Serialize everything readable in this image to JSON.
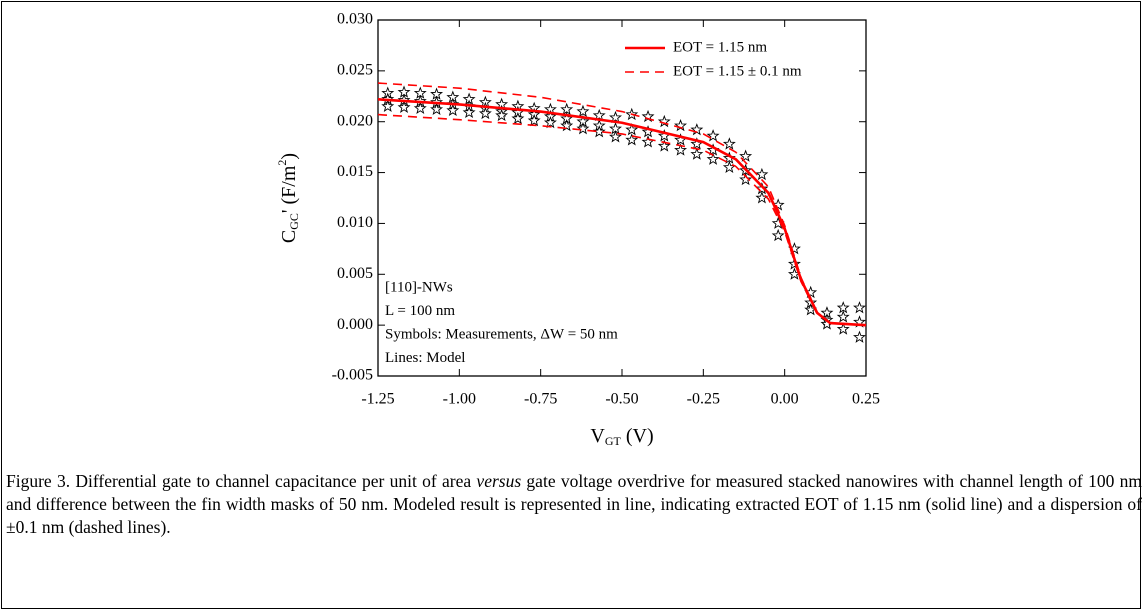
{
  "chart_data": {
    "type": "line",
    "x_label": {
      "main": "V",
      "sub": "GT",
      "rest": " (V)"
    },
    "y_label": {
      "main": "C",
      "sub": "GC",
      "rest": "' (F/m",
      "sup": "2",
      "end": ")"
    },
    "xlim": [
      -1.25,
      0.25
    ],
    "xticks": [
      -1.25,
      {
        "value": -1.0,
        "label": "-1.00"
      },
      -0.75,
      {
        "value": -0.5,
        "label": "-0.50"
      },
      -0.25,
      {
        "value": 0,
        "label": "0.00"
      },
      0.25
    ],
    "ylim": [
      -0.005,
      0.03
    ],
    "yticks": [
      {
        "value": -0.005,
        "label": "-0.005"
      },
      {
        "value": 0,
        "label": "0.000"
      },
      {
        "value": 0.005,
        "label": "0.005"
      },
      {
        "value": 0.01,
        "label": "0.010"
      },
      {
        "value": 0.015,
        "label": "0.015"
      },
      {
        "value": 0.02,
        "label": "0.020"
      },
      {
        "value": 0.025,
        "label": "0.025"
      },
      {
        "value": 0.03,
        "label": "0.030"
      }
    ],
    "x": [
      -1.25,
      -1.0,
      -0.75,
      -0.5,
      -0.25,
      -0.15,
      -0.05,
      0,
      0.05,
      0.1,
      0.14,
      0.25
    ],
    "series": [
      {
        "name": "EOT = 1.15 nm",
        "color": "#ff0000",
        "dashed": false,
        "values": [
          0.0222,
          0.0217,
          0.021,
          0.0199,
          0.018,
          0.0163,
          0.013,
          0.0095,
          0.0045,
          0.0012,
          0.0002,
          0
        ]
      },
      {
        "name": "EOT = 1.15 ± 0.1 nm",
        "color": "#ff0000",
        "dashed": true,
        "values": [
          0.0238,
          0.0233,
          0.0224,
          0.021,
          0.0188,
          0.017,
          0.0136,
          0.0098,
          0.0047,
          0.0012,
          0.0002,
          0
        ]
      },
      {
        "color": "#ff0000",
        "dashed": true,
        "values": [
          0.0207,
          0.0202,
          0.0196,
          0.0188,
          0.0172,
          0.0156,
          0.0124,
          0.0092,
          0.0043,
          0.0011,
          0.0002,
          0
        ]
      }
    ],
    "legend": "upper right",
    "measurements": {
      "marker": "star",
      "x": [
        -1.22,
        -1.17,
        -1.12,
        -1.07,
        -1.02,
        -0.97,
        -0.92,
        -0.87,
        -0.82,
        -0.77,
        -0.72,
        -0.67,
        -0.62,
        -0.57,
        -0.52,
        -0.47,
        -0.42,
        -0.37,
        -0.32,
        -0.27,
        -0.22,
        -0.17,
        -0.12,
        -0.07,
        -0.02,
        0.03,
        0.08,
        0.13,
        0.18,
        0.23
      ],
      "values": [
        [
          0.0228,
          0.0222,
          0.0215
        ],
        [
          0.0229,
          0.0221,
          0.0214
        ],
        [
          0.0228,
          0.022,
          0.0213
        ],
        [
          0.0227,
          0.0219,
          0.0212
        ],
        [
          0.0224,
          0.0217,
          0.0211
        ],
        [
          0.0222,
          0.0215,
          0.0209
        ],
        [
          0.0219,
          0.0213,
          0.0208
        ],
        [
          0.0217,
          0.021,
          0.0206
        ],
        [
          0.0215,
          0.0209,
          0.0203
        ],
        [
          0.0213,
          0.0207,
          0.0201
        ],
        [
          0.0212,
          0.0205,
          0.0199
        ],
        [
          0.0212,
          0.0203,
          0.0196
        ],
        [
          0.021,
          0.02,
          0.0193
        ],
        [
          0.0206,
          0.0196,
          0.019
        ],
        [
          0.0204,
          0.0193,
          0.0185
        ],
        [
          0.0207,
          0.0192,
          0.0182
        ],
        [
          0.0205,
          0.019,
          0.018
        ],
        [
          0.02,
          0.0186,
          0.0176
        ],
        [
          0.0196,
          0.0182,
          0.0172
        ],
        [
          0.0192,
          0.0178,
          0.0168
        ],
        [
          0.0186,
          0.0172,
          0.0163
        ],
        [
          0.0178,
          0.0164,
          0.0155
        ],
        [
          0.0166,
          0.0152,
          0.0143
        ],
        [
          0.0148,
          0.0134,
          0.0125
        ],
        [
          0.0118,
          0.01,
          0.0088
        ],
        [
          0.0075,
          0.006,
          0.005
        ],
        [
          0.0032,
          0.0022,
          0.0015
        ],
        [
          0.0012,
          0.0005,
          0.0001
        ],
        [
          0.0017,
          0.0008,
          -0.0004
        ],
        [
          0.0017,
          0.0003,
          -0.0012
        ]
      ]
    },
    "annotations": [
      "[110]-NWs",
      "L = 100 nm",
      "Symbols: Measurements, ΔW = 50 nm",
      "Lines: Model"
    ]
  },
  "caption": {
    "before": "Figure 3. Differential gate to channel capacitance per unit of area ",
    "italic": "versus",
    "after": " gate voltage overdrive for measured stacked nanowires with channel length of 100 nm and difference between the fin width masks of 50 nm. Modeled result is represented in line, indicating extracted EOT of 1.15 nm (solid line) and a dispersion of ±0.1 nm (dashed lines)."
  }
}
